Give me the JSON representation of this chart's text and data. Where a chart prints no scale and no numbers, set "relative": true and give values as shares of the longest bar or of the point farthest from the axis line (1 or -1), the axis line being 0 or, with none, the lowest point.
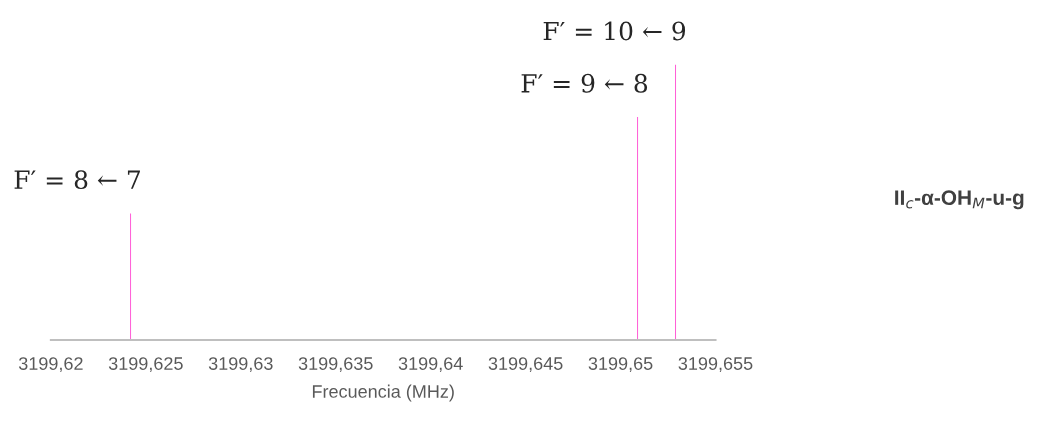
{
  "chart_data": {
    "type": "bar",
    "relative": true,
    "x": [
      3199.6242,
      3199.6509,
      3199.6529
    ],
    "series": [
      {
        "color": "#ff33cc",
        "values": [
          0.46,
          0.81,
          1
        ]
      }
    ],
    "xlim": [
      3199.62,
      3199.655
    ],
    "xticks": [
      {
        "value": 3199.62,
        "label": "3199,62"
      },
      {
        "value": 3199.625,
        "label": "3199,625"
      },
      {
        "value": 3199.63,
        "label": "3199,63"
      },
      {
        "value": 3199.635,
        "label": "3199,635"
      },
      {
        "value": 3199.64,
        "label": "3199,64"
      },
      {
        "value": 3199.645,
        "label": "3199,645"
      },
      {
        "value": 3199.65,
        "label": "3199,65"
      },
      {
        "value": 3199.655,
        "label": "3199,655"
      }
    ],
    "xlabel": "Frecuencia (MHz)",
    "tick_labels": "x",
    "grid": false,
    "annotations": [
      {
        "text": "F′ = 8 ← 7",
        "x": 3199.6242,
        "y": 0.46
      },
      {
        "text": "F′ = 9 ← 8",
        "x": 3199.6509,
        "y": 0.81
      },
      {
        "text": "F′ = 10 ← 9",
        "x": 3199.6529,
        "y": 1
      },
      "II$_{c}$-α-OH$_{M}$-u-g"
    ]
  }
}
